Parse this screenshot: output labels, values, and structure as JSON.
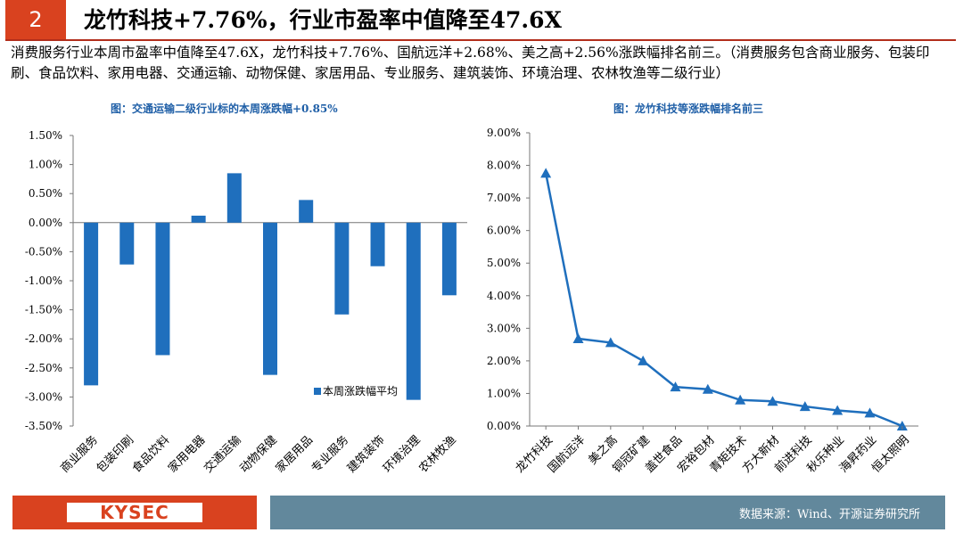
{
  "header": {
    "section_number": "2",
    "title": "龙竹科技+7.76%，行业市盈率中值降至47.6X"
  },
  "summary": "消费服务行业本周市盈率中值降至47.6X，龙竹科技+7.76%、国航远洋+2.68%、美之高+2.56%涨跌幅排名前三。（消费服务包含商业服务、包装印刷、食品饮料、家用电器、交通运输、动物保健、家居用品、专业服务、建筑装饰、环境治理、农林牧渔等二级行业）",
  "footer": {
    "logo": "KYSEC",
    "source": "数据来源：Wind、开源证券研究所"
  },
  "colors": {
    "accent": "#d9421f",
    "series": "#1f6fbd",
    "footer_bar": "#62889c"
  },
  "chart_data": [
    {
      "type": "bar",
      "title": "图：交通运输二级行业标的本周涨跌幅+0.85%",
      "categories": [
        "商业服务",
        "包装印刷",
        "食品饮料",
        "家用电器",
        "交通运输",
        "动物保健",
        "家居用品",
        "专业服务",
        "建筑装饰",
        "环境治理",
        "农林牧渔"
      ],
      "series": [
        {
          "name": "本周涨跌幅平均",
          "values": [
            -2.8,
            -0.72,
            -2.28,
            0.12,
            0.85,
            -2.62,
            0.39,
            -1.58,
            -0.75,
            -3.05,
            -1.25
          ]
        }
      ],
      "ylim": [
        -3.5,
        1.5
      ],
      "yticks": [
        "1.50%",
        "1.00%",
        "0.50%",
        "0.00%",
        "-0.50%",
        "-1.00%",
        "-1.50%",
        "-2.00%",
        "-2.50%",
        "-3.00%",
        "-3.50%"
      ],
      "legend": "bottom-right"
    },
    {
      "type": "line",
      "title": "图：龙竹科技等涨跌幅排名前三",
      "categories": [
        "龙竹科技",
        "国航远洋",
        "美之高",
        "铜冠矿建",
        "盖世食品",
        "宏裕包材",
        "青矩技术",
        "方大新材",
        "前进科技",
        "秋乐种业",
        "海昇药业",
        "恒太照明"
      ],
      "series": [
        {
          "values": [
            7.76,
            2.68,
            2.56,
            2.0,
            1.2,
            1.13,
            0.8,
            0.76,
            0.6,
            0.48,
            0.4,
            0.0
          ]
        }
      ],
      "ylim": [
        0,
        9
      ],
      "yticks": [
        "9.00%",
        "8.00%",
        "7.00%",
        "6.00%",
        "5.00%",
        "4.00%",
        "3.00%",
        "2.00%",
        "1.00%",
        "0.00%"
      ]
    }
  ]
}
